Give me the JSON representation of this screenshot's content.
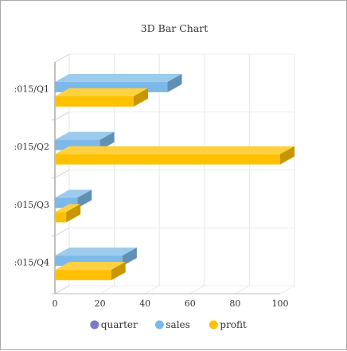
{
  "chart_data": {
    "type": "bar",
    "orientation": "horizontal",
    "three_d": true,
    "title": "3D Bar Chart",
    "categories": [
      ":015/Q1",
      ":015/Q2",
      ":015/Q3",
      ":015/Q4"
    ],
    "series": [
      {
        "name": "quarter",
        "values": [
          null,
          null,
          null,
          null
        ],
        "color": "#7a7ac8"
      },
      {
        "name": "sales",
        "values": [
          50,
          20,
          10,
          30
        ],
        "color": "#7cb9e8"
      },
      {
        "name": "profit",
        "values": [
          35,
          100,
          5,
          25
        ],
        "color": "#ffc000"
      }
    ],
    "x_ticks": [
      "0",
      "20",
      "40",
      "60",
      "80",
      "100"
    ],
    "xlim": [
      0,
      100
    ],
    "grid": true,
    "legend_position": "bottom"
  }
}
